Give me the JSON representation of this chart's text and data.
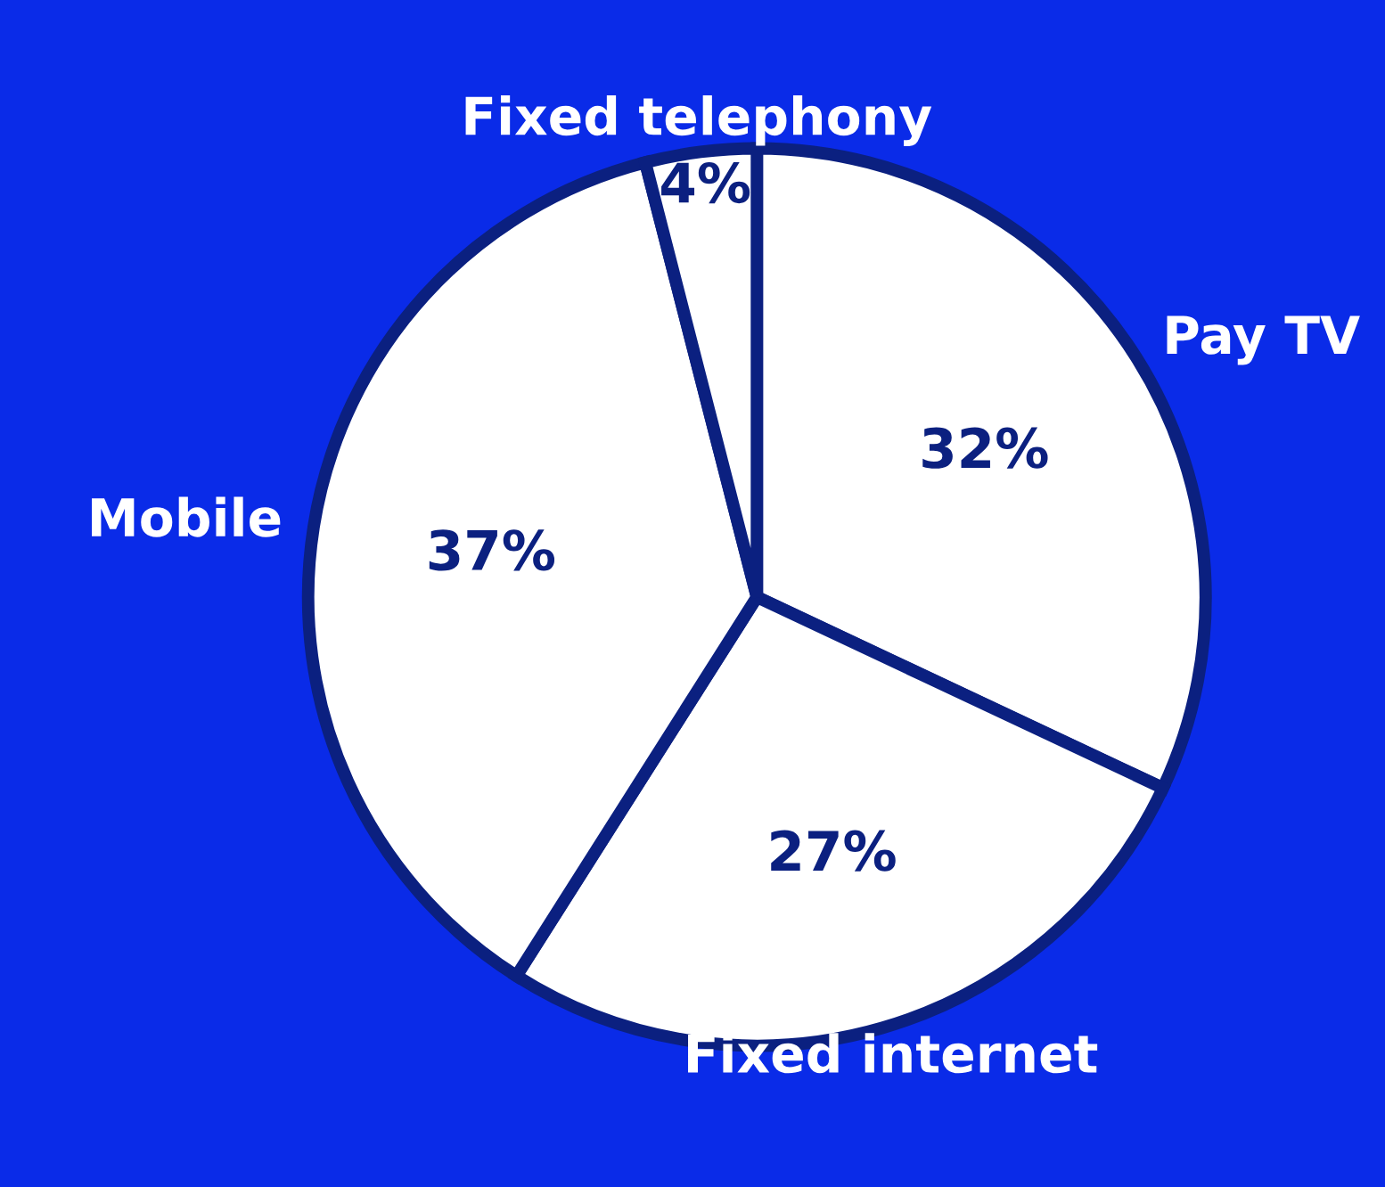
{
  "chart_data": {
    "type": "pie",
    "categories": [
      "Pay TV",
      "Fixed internet",
      "Mobile",
      "Fixed telephony"
    ],
    "values": [
      32,
      27,
      37,
      4
    ],
    "value_labels": [
      "32%",
      "27%",
      "37%",
      "4%"
    ],
    "colors": [
      "#ffffff",
      "#ffffff",
      "#ffffff",
      "#ffffff"
    ],
    "legend": false
  }
}
